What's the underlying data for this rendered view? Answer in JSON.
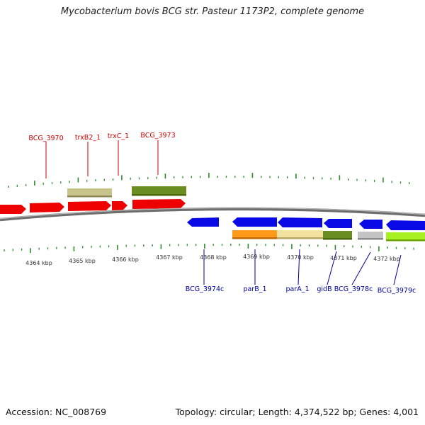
{
  "title": "Mycobacterium bovis BCG str. Pasteur 1173P2, complete genome",
  "footer": {
    "accession": "Accession: NC_008769",
    "topology": "Topology: circular; Length: 4,374,522 bp; Genes: 4,001"
  },
  "colors": {
    "backbone": "#8a8a8a",
    "forward_label": "#cc0000",
    "reverse_label": "#00009a",
    "tick": "#2e8b2e",
    "scale_text": "#333333"
  },
  "scale_labels": [
    "4364 kbp",
    "4365 kbp",
    "4366 kbp",
    "4367 kbp",
    "4368 kbp",
    "4369 kbp",
    "4370 kbp",
    "4371 kbp",
    "4372 kbp"
  ],
  "forward_gene_labels": [
    "BCG_3970",
    "trxB2_1",
    "trxC_1",
    "BCG_3973"
  ],
  "reverse_gene_labels": [
    "BCG_3974c",
    "parB_1",
    "parA_1",
    "gidB",
    "BCG_3978c",
    "BCG_3979c"
  ]
}
